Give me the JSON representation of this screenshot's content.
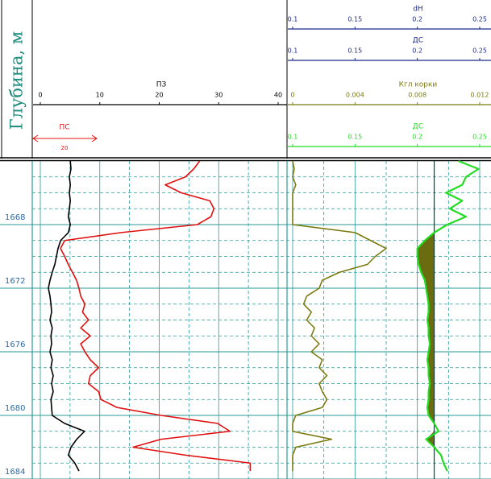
{
  "chart_data": {
    "type": "well_log",
    "y_label": "Глубина, м",
    "ylim": [
      1664,
      1684
    ],
    "yticks": [
      1668,
      1672,
      1676,
      1680,
      1684
    ],
    "depth": [
      1664,
      1664.5,
      1665,
      1665.5,
      1666,
      1666.5,
      1667,
      1667.5,
      1668,
      1668.5,
      1669,
      1669.5,
      1670,
      1670.5,
      1671,
      1671.5,
      1672,
      1672.5,
      1673,
      1673.5,
      1674,
      1674.5,
      1675,
      1675.5,
      1676,
      1676.5,
      1677,
      1677.5,
      1678,
      1678.5,
      1679,
      1679.5,
      1680,
      1680.5,
      1681,
      1681.5,
      1682,
      1682.5,
      1683,
      1683.5
    ],
    "tracks": [
      {
        "curves": [
          {
            "name": "ПЗ",
            "color": "#e01010",
            "header_color": "#000000",
            "xlim": [
              0,
              40
            ],
            "xticks": [
              0,
              10,
              20,
              30,
              40
            ],
            "values": [
              26.8,
              25.8,
              24.4,
              21,
              23.7,
              28.5,
              29.2,
              28.7,
              26.4,
              13.6,
              4.1,
              3.4,
              4.1,
              4.7,
              5.4,
              6.1,
              6.5,
              6.8,
              7.5,
              7.1,
              8.1,
              6.8,
              8.4,
              6.8,
              7.5,
              8.4,
              9.8,
              8.4,
              8.1,
              9.8,
              10.2,
              12.9,
              20.3,
              29.8,
              31.9,
              20.3,
              15.6,
              24.4,
              35.3,
              35.3
            ]
          },
          {
            "name": "ПС",
            "color": "#000000",
            "header_color": "#e01010",
            "scale": 20,
            "values": [
              11.8,
              12,
              11.5,
              11.8,
              11.5,
              11.8,
              11.5,
              11.2,
              11.8,
              11.2,
              8.8,
              8,
              7.5,
              7,
              6.2,
              5.5,
              5,
              5.5,
              5.8,
              6,
              5.5,
              6.2,
              5.8,
              6,
              5.5,
              6.2,
              5.8,
              6.5,
              6,
              6.5,
              5.8,
              6,
              6.2,
              10,
              16.2,
              13.8,
              12,
              11.2,
              13.2,
              14.5
            ]
          }
        ]
      },
      {
        "curves": [
          {
            "name": "dH",
            "color": "#1a2a8a",
            "header_color": "#1a2a8a",
            "xlim": [
              0.1,
              0.25
            ],
            "xticks": [
              0.1,
              0.15,
              0.2,
              0.25
            ]
          },
          {
            "name": "ДС",
            "color": "#1a2a8a",
            "header_color": "#1a2a8a",
            "xlim": [
              0.1,
              0.25
            ],
            "xticks": [
              0.1,
              0.15,
              0.2,
              0.25
            ]
          },
          {
            "name": "Кгл корки",
            "color": "#7a7a10",
            "header_color": "#7a7a10",
            "xlim": [
              0,
              0.012
            ],
            "xticks": [
              0,
              0.004,
              0.008,
              0.012
            ],
            "values": [
              0,
              0.0001,
              0,
              0.0002,
              0,
              0,
              0,
              0,
              0,
              0.004,
              0.005,
              0.006,
              0.0053,
              0.0048,
              0.003,
              0.0019,
              0.0017,
              0.0009,
              0.0007,
              0.0012,
              0.0009,
              0.0014,
              0.0012,
              0.0017,
              0.0012,
              0.0019,
              0.0017,
              0.0022,
              0.0017,
              0.0019,
              0.0022,
              0.0019,
              0.0002,
              0,
              0,
              0.0025,
              0.0002,
              0,
              0,
              0
            ]
          },
          {
            "name": "ДС",
            "color": "#22dd22",
            "header_color": "#22dd22",
            "xlim": [
              0.1,
              0.25
            ],
            "xticks": [
              0.1,
              0.15,
              0.2,
              0.25
            ],
            "reference_value": 0.2135,
            "fill_color": "#6b6b10",
            "values": [
              0.233,
              0.249,
              0.239,
              0.236,
              0.223,
              0.236,
              0.226,
              0.239,
              0.224,
              0.2135,
              0.206,
              0.2,
              0.2,
              0.201,
              0.203,
              0.206,
              0.207,
              0.208,
              0.209,
              0.209,
              0.208,
              0.209,
              0.209,
              0.21,
              0.209,
              0.208,
              0.209,
              0.209,
              0.21,
              0.209,
              0.209,
              0.208,
              0.209,
              0.2135,
              0.217,
              0.207,
              0.2135,
              0.219,
              0.221,
              0.224
            ]
          }
        ]
      }
    ]
  }
}
